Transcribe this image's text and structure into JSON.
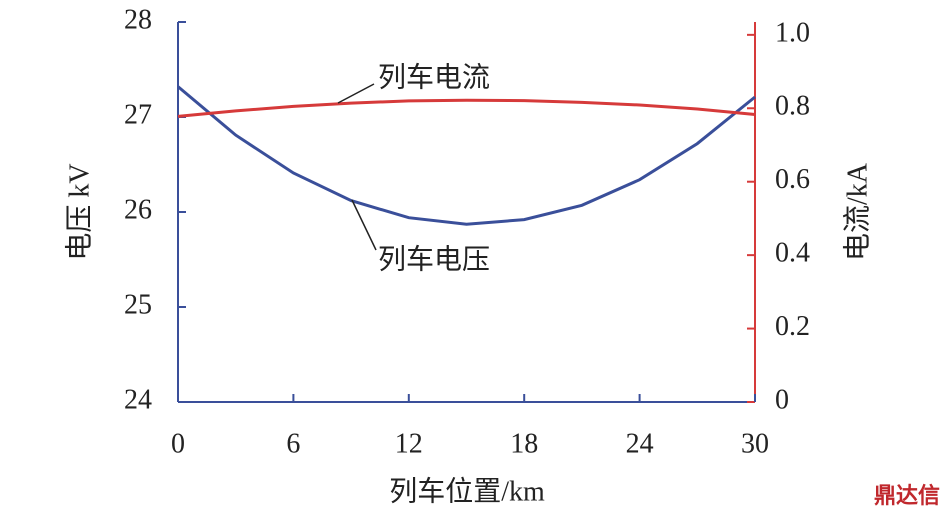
{
  "chart_data": {
    "type": "line",
    "x": [
      0,
      3,
      6,
      9,
      12,
      15,
      18,
      21,
      24,
      27,
      30
    ],
    "series": [
      {
        "name": "列车电压",
        "color": "#3a4f9a",
        "values": [
          27.32,
          26.81,
          26.41,
          26.12,
          25.94,
          25.87,
          25.92,
          26.07,
          26.34,
          26.72,
          27.21
        ]
      },
      {
        "name": "列车电流",
        "color": "#d63a3a",
        "axis": "y2",
        "values": [
          0.778,
          0.793,
          0.805,
          0.814,
          0.82,
          0.822,
          0.821,
          0.816,
          0.809,
          0.798,
          0.783
        ]
      }
    ],
    "xlim": [
      0,
      30
    ],
    "xticks": [
      0,
      6,
      12,
      18,
      24,
      30
    ],
    "ylim": [
      24,
      28
    ],
    "yticks": [
      24,
      25,
      26,
      27,
      28
    ],
    "y2lim": [
      0,
      1.035
    ],
    "y2ticks": [
      0,
      0.2,
      0.4,
      0.6,
      0.8,
      {
        "value": 1,
        "label": "1.0"
      }
    ],
    "xlabel": "列车位置/km",
    "ylabel": "电压 kV",
    "y2label": "电流/kA",
    "annotations": [
      "列车电流",
      "列车电压"
    ],
    "watermark": "鼎达信"
  }
}
